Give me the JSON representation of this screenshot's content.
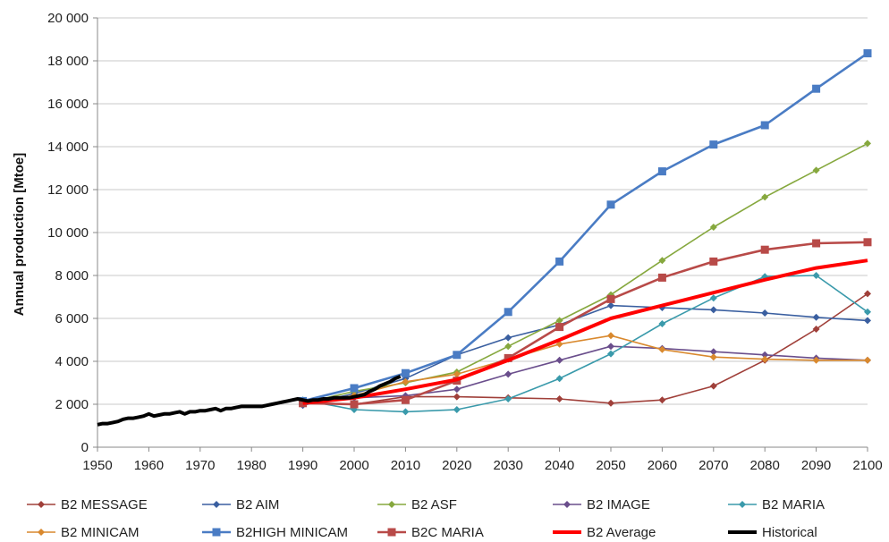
{
  "chart_data": {
    "type": "line",
    "title": "",
    "xlabel": "",
    "ylabel": "Annual production  [Mtoe]",
    "xlim": [
      1950,
      2100
    ],
    "ylim": [
      0,
      20000
    ],
    "grid": "horizontal",
    "legend_position": "bottom",
    "x_ticks": [
      "1950",
      "1960",
      "1970",
      "1980",
      "1990",
      "2000",
      "2010",
      "2020",
      "2030",
      "2040",
      "2050",
      "2060",
      "2070",
      "2080",
      "2090",
      "2100"
    ],
    "y_ticks": [
      "0",
      "2 000",
      "4 000",
      "6 000",
      "8 000",
      "10 000",
      "12 000",
      "14 000",
      "16 000",
      "18 000",
      "20 000"
    ],
    "scenario_x": [
      1990,
      2000,
      2010,
      2020,
      2030,
      2040,
      2050,
      2060,
      2070,
      2080,
      2090,
      2100
    ],
    "series": [
      {
        "name": "B2 MESSAGE",
        "color": "#a0403a",
        "marker": "diamond",
        "width": 1.6,
        "values": [
          2050,
          2000,
          2350,
          2350,
          2300,
          2250,
          2050,
          2200,
          2850,
          4050,
          5500,
          7150
        ]
      },
      {
        "name": "B2 AIM",
        "color": "#3a5fa0",
        "marker": "diamond",
        "width": 1.6,
        "values": [
          1950,
          2500,
          3200,
          4300,
          5100,
          5700,
          6600,
          6500,
          6400,
          6250,
          6050,
          5900
        ]
      },
      {
        "name": "B2 ASF",
        "color": "#86a83e",
        "marker": "diamond",
        "width": 1.6,
        "values": [
          2050,
          2600,
          3000,
          3500,
          4700,
          5900,
          7100,
          8700,
          10250,
          11650,
          12900,
          14150
        ]
      },
      {
        "name": "B2 IMAGE",
        "color": "#6a4e8c",
        "marker": "diamond",
        "width": 1.6,
        "values": [
          2000,
          2300,
          2400,
          2700,
          3400,
          4050,
          4700,
          4600,
          4450,
          4300,
          4150,
          4050
        ]
      },
      {
        "name": "B2 MARIA",
        "color": "#3a9aab",
        "marker": "diamond",
        "width": 1.6,
        "values": [
          2200,
          1750,
          1650,
          1750,
          2250,
          3200,
          4350,
          5750,
          6950,
          7950,
          8000,
          6300
        ]
      },
      {
        "name": "B2 MINICAM",
        "color": "#d9892e",
        "marker": "diamond",
        "width": 1.6,
        "values": [
          2100,
          2400,
          3050,
          3400,
          4100,
          4800,
          5200,
          4550,
          4200,
          4100,
          4050,
          4050
        ]
      },
      {
        "name": "B2HIGH MINICAM",
        "color": "#4a7cc4",
        "marker": "square",
        "width": 2.6,
        "values": [
          2150,
          2750,
          3450,
          4300,
          6300,
          8650,
          11300,
          12850,
          14100,
          15000,
          16700,
          18350
        ]
      },
      {
        "name": "B2C MARIA",
        "color": "#b84a48",
        "marker": "square",
        "width": 2.6,
        "values": [
          2050,
          2000,
          2200,
          3100,
          4150,
          5600,
          6900,
          7900,
          8650,
          9200,
          9500,
          9550
        ]
      },
      {
        "name": "B2 Average",
        "color": "#ff0000",
        "marker": "none",
        "width": 4,
        "values": [
          2050,
          2300,
          2700,
          3150,
          4050,
          5000,
          6000,
          6600,
          7200,
          7800,
          8350,
          8700
        ]
      }
    ],
    "historical": {
      "name": "Historical",
      "color": "#000000",
      "x": [
        1950,
        1951,
        1952,
        1953,
        1954,
        1955,
        1956,
        1957,
        1958,
        1959,
        1960,
        1961,
        1962,
        1963,
        1964,
        1965,
        1966,
        1967,
        1968,
        1969,
        1970,
        1971,
        1972,
        1973,
        1974,
        1975,
        1976,
        1977,
        1978,
        1979,
        1980,
        1981,
        1982,
        1983,
        1984,
        1985,
        1986,
        1987,
        1988,
        1989,
        1990,
        1991,
        1992,
        1993,
        1994,
        1995,
        1996,
        1997,
        1998,
        1999,
        2000,
        2001,
        2002,
        2003,
        2004,
        2005,
        2006,
        2007,
        2008,
        2009
      ],
      "values": [
        1050,
        1100,
        1100,
        1150,
        1200,
        1300,
        1350,
        1350,
        1400,
        1450,
        1550,
        1450,
        1500,
        1550,
        1550,
        1600,
        1650,
        1550,
        1650,
        1650,
        1700,
        1700,
        1750,
        1800,
        1700,
        1800,
        1800,
        1850,
        1900,
        1900,
        1900,
        1900,
        1900,
        1950,
        2000,
        2050,
        2100,
        2150,
        2200,
        2250,
        2200,
        2150,
        2200,
        2200,
        2250,
        2250,
        2300,
        2300,
        2300,
        2300,
        2350,
        2400,
        2450,
        2600,
        2700,
        2850,
        2950,
        3050,
        3200,
        3300
      ]
    }
  }
}
